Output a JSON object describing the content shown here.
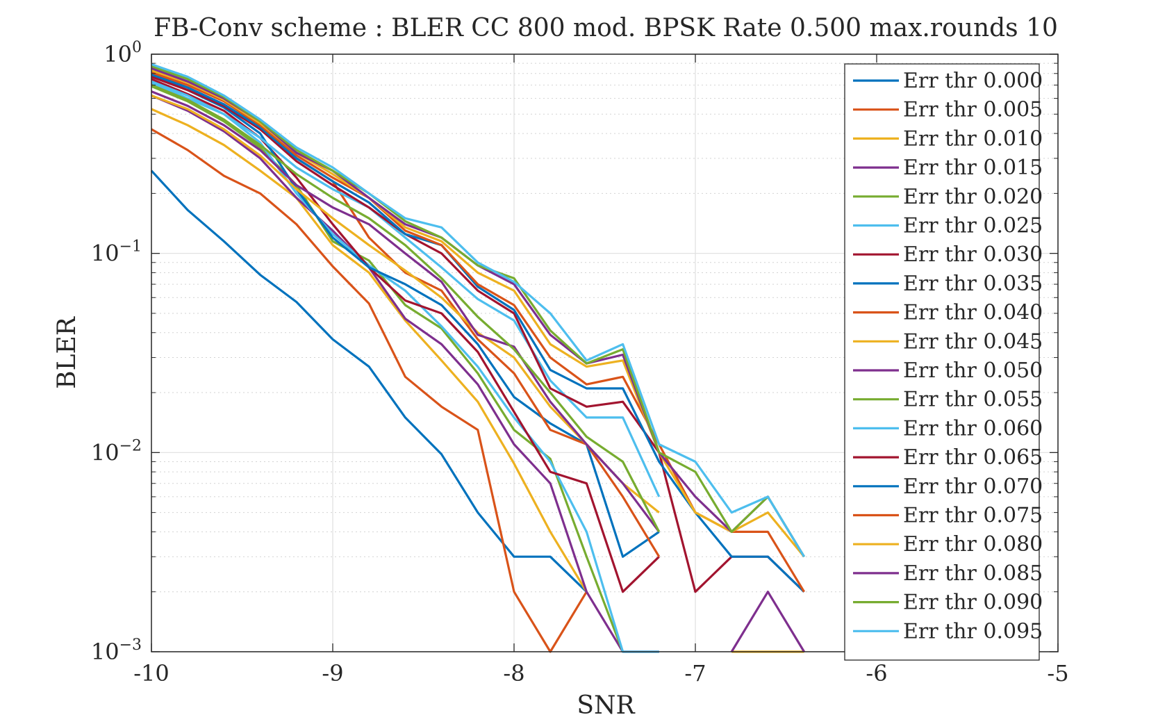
{
  "chart_data": {
    "type": "line",
    "title": "FB-Conv scheme : BLER CC 800 mod. BPSK Rate 0.500 max.rounds 10",
    "xlabel": "SNR",
    "ylabel": "BLER",
    "xlim": [
      -10,
      -5
    ],
    "ylim": [
      0.001,
      1
    ],
    "yscale": "log",
    "grid": true,
    "legend_position": "top-right",
    "x_ticks": [
      -10,
      -9,
      -8,
      -7,
      -6,
      -5
    ],
    "x_tick_labels": [
      "-10",
      "-9",
      "-8",
      "-7",
      "-6",
      "-5"
    ],
    "y_ticks": [
      {
        "value": 1,
        "base": "10",
        "exp": "0"
      },
      {
        "value": 0.1,
        "base": "10",
        "exp": "−1"
      },
      {
        "value": 0.01,
        "base": "10",
        "exp": "−2"
      },
      {
        "value": 0.001,
        "base": "10",
        "exp": "−3"
      }
    ],
    "x": [
      -10,
      -9.8,
      -9.6,
      -9.4,
      -9.2,
      -9,
      -8.8,
      -8.6,
      -8.4,
      -8.2,
      -8,
      -7.8,
      -7.6,
      -7.4,
      -7.2,
      -7,
      -6.8,
      -6.6,
      -6.4
    ],
    "series": [
      {
        "name": "Err thr 0.000",
        "color": "#0072BD",
        "values": [
          0.26,
          0.165,
          0.115,
          0.078,
          0.057,
          0.037,
          0.027,
          0.015,
          0.0098,
          0.005,
          0.003,
          0.003,
          0.002,
          null,
          null,
          null,
          null,
          null,
          null
        ]
      },
      {
        "name": "Err thr 0.005",
        "color": "#D95319",
        "values": [
          0.42,
          0.33,
          0.245,
          0.2,
          0.14,
          0.086,
          0.056,
          0.024,
          0.017,
          0.013,
          0.002,
          0.001,
          0.002,
          null,
          null,
          null,
          null,
          null,
          null
        ]
      },
      {
        "name": "Err thr 0.010",
        "color": "#EDB120",
        "values": [
          0.53,
          0.44,
          0.35,
          0.26,
          0.19,
          0.11,
          0.08,
          0.046,
          0.029,
          0.018,
          0.0088,
          0.004,
          0.002,
          null,
          null,
          null,
          0.001,
          0.001,
          0.001
        ]
      },
      {
        "name": "Err thr 0.015",
        "color": "#7E2F8E",
        "values": [
          0.62,
          0.52,
          0.41,
          0.3,
          0.19,
          0.13,
          0.085,
          0.047,
          0.035,
          0.022,
          0.011,
          0.007,
          0.002,
          0.001,
          0.001,
          null,
          0.001,
          0.002,
          0.001
        ]
      },
      {
        "name": "Err thr 0.020",
        "color": "#77AC30",
        "values": [
          0.69,
          0.58,
          0.46,
          0.34,
          0.22,
          0.115,
          0.092,
          0.055,
          0.042,
          0.025,
          0.013,
          0.0093,
          0.003,
          0.001,
          null,
          null,
          null,
          null,
          null
        ]
      },
      {
        "name": "Err thr 0.025",
        "color": "#4DBEEE",
        "values": [
          0.72,
          0.6,
          0.5,
          0.36,
          0.2,
          0.125,
          0.087,
          0.065,
          0.043,
          0.027,
          0.015,
          0.009,
          0.004,
          0.001,
          0.001,
          null,
          null,
          null,
          null
        ]
      },
      {
        "name": "Err thr 0.030",
        "color": "#A2142F",
        "values": [
          0.75,
          0.63,
          0.52,
          0.38,
          0.24,
          0.14,
          0.085,
          0.058,
          0.05,
          0.032,
          0.016,
          0.008,
          0.007,
          0.002,
          0.003,
          null,
          null,
          null,
          null
        ]
      },
      {
        "name": "Err thr 0.035",
        "color": "#0072BD",
        "values": [
          0.78,
          0.66,
          0.54,
          0.4,
          0.21,
          0.12,
          0.085,
          0.07,
          0.055,
          0.035,
          0.019,
          0.014,
          0.011,
          0.003,
          0.004,
          null,
          null,
          null,
          null
        ]
      },
      {
        "name": "Err thr 0.040",
        "color": "#D95319",
        "values": [
          0.8,
          0.68,
          0.56,
          0.42,
          0.3,
          0.23,
          0.12,
          0.08,
          0.065,
          0.037,
          0.025,
          0.013,
          0.011,
          0.006,
          0.003,
          null,
          null,
          null,
          null
        ]
      },
      {
        "name": "Err thr 0.045",
        "color": "#EDB120",
        "values": [
          0.62,
          0.53,
          0.42,
          0.31,
          0.21,
          0.15,
          0.11,
          0.082,
          0.06,
          0.04,
          0.03,
          0.017,
          0.011,
          0.007,
          0.005,
          null,
          null,
          null,
          null
        ]
      },
      {
        "name": "Err thr 0.050",
        "color": "#7E2F8E",
        "values": [
          0.65,
          0.55,
          0.44,
          0.33,
          0.22,
          0.17,
          0.14,
          0.1,
          0.072,
          0.039,
          0.034,
          0.018,
          0.011,
          0.007,
          0.004,
          null,
          null,
          null,
          null
        ]
      },
      {
        "name": "Err thr 0.055",
        "color": "#77AC30",
        "values": [
          0.7,
          0.59,
          0.47,
          0.35,
          0.25,
          0.19,
          0.15,
          0.11,
          0.075,
          0.048,
          0.033,
          0.02,
          0.012,
          0.009,
          0.004,
          null,
          null,
          null,
          null
        ]
      },
      {
        "name": "Err thr 0.060",
        "color": "#4DBEEE",
        "values": [
          0.73,
          0.62,
          0.5,
          0.38,
          0.27,
          0.21,
          0.17,
          0.12,
          0.085,
          0.059,
          0.046,
          0.023,
          0.015,
          0.015,
          0.006,
          null,
          null,
          null,
          null
        ]
      },
      {
        "name": "Err thr 0.065",
        "color": "#A2142F",
        "values": [
          0.77,
          0.66,
          0.55,
          0.42,
          0.29,
          0.22,
          0.17,
          0.125,
          0.1,
          0.065,
          0.05,
          0.021,
          0.017,
          0.018,
          0.01,
          0.002,
          0.003,
          0.003,
          0.002
        ]
      },
      {
        "name": "Err thr 0.070",
        "color": "#0072BD",
        "values": [
          0.79,
          0.68,
          0.56,
          0.43,
          0.3,
          0.23,
          0.18,
          0.125,
          0.11,
          0.068,
          0.052,
          0.026,
          0.021,
          0.021,
          0.009,
          0.005,
          0.003,
          0.003,
          0.002
        ]
      },
      {
        "name": "Err thr 0.075",
        "color": "#D95319",
        "values": [
          0.81,
          0.7,
          0.58,
          0.44,
          0.31,
          0.24,
          0.19,
          0.13,
          0.11,
          0.07,
          0.055,
          0.03,
          0.022,
          0.024,
          0.011,
          0.005,
          0.004,
          0.004,
          0.002
        ]
      },
      {
        "name": "Err thr 0.080",
        "color": "#EDB120",
        "values": [
          0.83,
          0.72,
          0.59,
          0.45,
          0.32,
          0.25,
          0.19,
          0.135,
          0.115,
          0.08,
          0.065,
          0.035,
          0.027,
          0.029,
          0.01,
          0.005,
          0.004,
          0.005,
          0.003
        ]
      },
      {
        "name": "Err thr 0.085",
        "color": "#7E2F8E",
        "values": [
          0.85,
          0.73,
          0.6,
          0.46,
          0.32,
          0.26,
          0.19,
          0.14,
          0.12,
          0.087,
          0.07,
          0.039,
          0.028,
          0.031,
          0.01,
          0.006,
          0.004,
          0.006,
          0.003
        ]
      },
      {
        "name": "Err thr 0.090",
        "color": "#77AC30",
        "values": [
          0.87,
          0.75,
          0.61,
          0.46,
          0.33,
          0.26,
          0.2,
          0.145,
          0.12,
          0.087,
          0.075,
          0.041,
          0.028,
          0.033,
          0.01,
          0.008,
          0.004,
          0.006,
          0.003
        ]
      },
      {
        "name": "Err thr 0.095",
        "color": "#4DBEEE",
        "values": [
          0.89,
          0.77,
          0.62,
          0.47,
          0.34,
          0.27,
          0.2,
          0.15,
          0.135,
          0.09,
          0.072,
          0.05,
          0.029,
          0.035,
          0.011,
          0.009,
          0.005,
          0.006,
          0.003
        ]
      }
    ]
  }
}
